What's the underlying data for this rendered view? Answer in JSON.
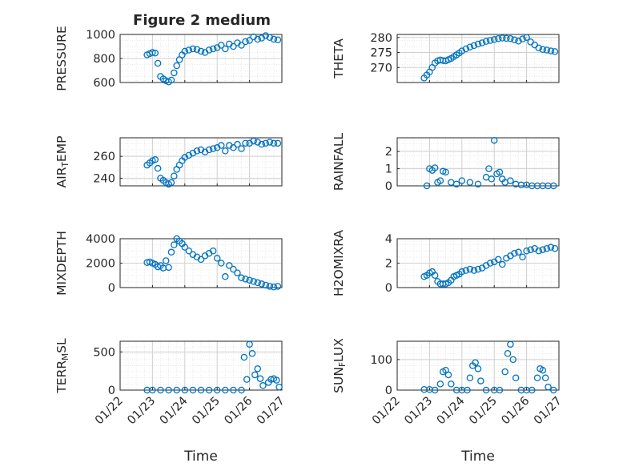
{
  "figure": {
    "title": "Figure 2 medium"
  },
  "chart_data": [
    {
      "type": "scatter",
      "ylabel": "PRESSURE",
      "ylim": [
        600,
        1000
      ],
      "yticks": [
        "600",
        "800",
        "1000"
      ],
      "xlim": [
        "01/22",
        "01/27"
      ],
      "xticks": [],
      "xlabel": "",
      "grid": true,
      "x": [
        "01/22 20:00",
        "01/22 22:00",
        "01/23 00:00",
        "01/23 02:00",
        "01/23 04:00",
        "01/23 06:00",
        "01/23 08:00",
        "01/23 10:00",
        "01/23 12:00",
        "01/23 14:00",
        "01/23 16:00",
        "01/23 18:00",
        "01/23 20:00",
        "01/23 22:00",
        "01/24 00:00",
        "01/24 03:00",
        "01/24 06:00",
        "01/24 09:00",
        "01/24 12:00",
        "01/24 15:00",
        "01/24 18:00",
        "01/24 21:00",
        "01/25 00:00",
        "01/25 03:00",
        "01/25 06:00",
        "01/25 09:00",
        "01/25 12:00",
        "01/25 15:00",
        "01/25 18:00",
        "01/25 21:00",
        "01/26 00:00",
        "01/26 03:00",
        "01/26 06:00",
        "01/26 09:00",
        "01/26 12:00",
        "01/26 15:00",
        "01/26 18:00",
        "01/26 21:00"
      ],
      "y": [
        830,
        840,
        850,
        845,
        760,
        650,
        630,
        615,
        605,
        620,
        680,
        740,
        790,
        830,
        860,
        870,
        880,
        875,
        860,
        850,
        870,
        880,
        890,
        910,
        880,
        920,
        900,
        930,
        910,
        940,
        950,
        980,
        960,
        970,
        990,
        975,
        960,
        955
      ]
    },
    {
      "type": "scatter",
      "ylabel": "THETA",
      "ylim": [
        265,
        281
      ],
      "yticks": [
        "270",
        "275",
        "280"
      ],
      "xlim": [
        "01/22",
        "01/27"
      ],
      "xticks": [],
      "xlabel": "",
      "grid": true,
      "x": [
        "01/22 20:00",
        "01/22 22:00",
        "01/23 00:00",
        "01/23 02:00",
        "01/23 04:00",
        "01/23 06:00",
        "01/23 08:00",
        "01/23 10:00",
        "01/23 12:00",
        "01/23 14:00",
        "01/23 16:00",
        "01/23 18:00",
        "01/23 20:00",
        "01/23 22:00",
        "01/24 00:00",
        "01/24 03:00",
        "01/24 06:00",
        "01/24 09:00",
        "01/24 12:00",
        "01/24 15:00",
        "01/24 18:00",
        "01/24 21:00",
        "01/25 00:00",
        "01/25 03:00",
        "01/25 06:00",
        "01/25 09:00",
        "01/25 12:00",
        "01/25 15:00",
        "01/25 18:00",
        "01/25 21:00",
        "01/26 00:00",
        "01/26 03:00",
        "01/26 06:00",
        "01/26 09:00",
        "01/26 12:00",
        "01/26 15:00",
        "01/26 18:00",
        "01/26 21:00"
      ],
      "y": [
        266.5,
        267.5,
        268.5,
        270,
        271.5,
        272.2,
        272.5,
        272.3,
        272.2,
        272.6,
        273,
        273.6,
        274.2,
        274.8,
        275.5,
        276.2,
        276.8,
        277.3,
        277.8,
        278.2,
        278.7,
        279,
        279.3,
        279.6,
        279.8,
        279.7,
        279.6,
        279.2,
        278.8,
        279.5,
        280,
        278.5,
        277.5,
        276.5,
        276,
        275.8,
        275.5,
        275.3
      ]
    },
    {
      "type": "scatter",
      "ylabel": "AIR_TEMP",
      "ylim": [
        233,
        277
      ],
      "yticks": [
        "240",
        "260"
      ],
      "xlim": [
        "01/22",
        "01/27"
      ],
      "xticks": [],
      "xlabel": "",
      "grid": true,
      "x": [
        "01/22 20:00",
        "01/22 22:00",
        "01/23 00:00",
        "01/23 02:00",
        "01/23 04:00",
        "01/23 06:00",
        "01/23 08:00",
        "01/23 10:00",
        "01/23 12:00",
        "01/23 14:00",
        "01/23 16:00",
        "01/23 18:00",
        "01/23 20:00",
        "01/23 22:00",
        "01/24 00:00",
        "01/24 03:00",
        "01/24 06:00",
        "01/24 09:00",
        "01/24 12:00",
        "01/24 15:00",
        "01/24 18:00",
        "01/24 21:00",
        "01/25 00:00",
        "01/25 03:00",
        "01/25 06:00",
        "01/25 09:00",
        "01/25 12:00",
        "01/25 15:00",
        "01/25 18:00",
        "01/25 21:00",
        "01/26 00:00",
        "01/26 03:00",
        "01/26 06:00",
        "01/26 09:00",
        "01/26 12:00",
        "01/26 15:00",
        "01/26 18:00",
        "01/26 21:00"
      ],
      "y": [
        252,
        254,
        256,
        257,
        249,
        240,
        238,
        236,
        234.5,
        236,
        242,
        248,
        252,
        256,
        259,
        261,
        263,
        265,
        266,
        264,
        266,
        267,
        268,
        270,
        265,
        270,
        268,
        271,
        267,
        272,
        272,
        274,
        273,
        271,
        272,
        273,
        272,
        272
      ]
    },
    {
      "type": "scatter",
      "ylabel": "RAINFALL",
      "ylim": [
        0,
        2.8
      ],
      "yticks": [
        "0",
        "1",
        "2"
      ],
      "xlim": [
        "01/22",
        "01/27"
      ],
      "xticks": [],
      "xlabel": "",
      "grid": true,
      "x": [
        "01/22 22:00",
        "01/23 00:00",
        "01/23 02:00",
        "01/23 04:00",
        "01/23 06:00",
        "01/23 08:00",
        "01/23 10:00",
        "01/23 12:00",
        "01/23 16:00",
        "01/23 20:00",
        "01/24 00:00",
        "01/24 06:00",
        "01/24 12:00",
        "01/24 18:00",
        "01/24 20:00",
        "01/24 22:00",
        "01/25 00:00",
        "01/25 02:00",
        "01/25 04:00",
        "01/25 06:00",
        "01/25 08:00",
        "01/25 12:00",
        "01/25 16:00",
        "01/25 20:00",
        "01/26 00:00",
        "01/26 04:00",
        "01/26 08:00",
        "01/26 12:00",
        "01/26 16:00",
        "01/26 20:00"
      ],
      "y": [
        0,
        1.0,
        0.9,
        1.05,
        0.2,
        0.3,
        0.85,
        0.8,
        0.2,
        0.1,
        0.3,
        0.2,
        0.1,
        0.5,
        1.0,
        0.4,
        2.65,
        0.7,
        0.8,
        0.4,
        0.2,
        0.3,
        0.1,
        0.05,
        0.05,
        0,
        0,
        0,
        0,
        0
      ]
    },
    {
      "type": "scatter",
      "ylabel": "MIXDEPTH",
      "ylim": [
        0,
        4000
      ],
      "yticks": [
        "0",
        "2000",
        "4000"
      ],
      "xlim": [
        "01/22",
        "01/27"
      ],
      "xticks": [],
      "xlabel": "",
      "grid": true,
      "x": [
        "01/22 20:00",
        "01/22 22:00",
        "01/23 00:00",
        "01/23 02:00",
        "01/23 04:00",
        "01/23 06:00",
        "01/23 08:00",
        "01/23 10:00",
        "01/23 12:00",
        "01/23 14:00",
        "01/23 16:00",
        "01/23 18:00",
        "01/23 20:00",
        "01/23 22:00",
        "01/24 00:00",
        "01/24 03:00",
        "01/24 06:00",
        "01/24 09:00",
        "01/24 12:00",
        "01/24 15:00",
        "01/24 18:00",
        "01/24 21:00",
        "01/25 00:00",
        "01/25 03:00",
        "01/25 06:00",
        "01/25 09:00",
        "01/25 12:00",
        "01/25 15:00",
        "01/25 18:00",
        "01/25 21:00",
        "01/26 00:00",
        "01/26 03:00",
        "01/26 06:00",
        "01/26 09:00",
        "01/26 12:00",
        "01/26 15:00",
        "01/26 18:00",
        "01/26 21:00"
      ],
      "y": [
        2050,
        2100,
        2000,
        1900,
        1700,
        1800,
        1600,
        2200,
        1650,
        2900,
        3500,
        4000,
        3800,
        3600,
        3300,
        3000,
        2700,
        2500,
        2300,
        2600,
        2800,
        3000,
        2400,
        2000,
        900,
        1800,
        1500,
        1200,
        800,
        700,
        600,
        500,
        400,
        300,
        200,
        100,
        50,
        100
      ]
    },
    {
      "type": "scatter",
      "ylabel": "H2OMIXRA",
      "ylim": [
        0,
        4
      ],
      "yticks": [
        "0",
        "2",
        "4"
      ],
      "xlim": [
        "01/22",
        "01/27"
      ],
      "xticks": [],
      "xlabel": "",
      "grid": true,
      "x": [
        "01/22 20:00",
        "01/22 22:00",
        "01/23 00:00",
        "01/23 02:00",
        "01/23 04:00",
        "01/23 06:00",
        "01/23 08:00",
        "01/23 10:00",
        "01/23 12:00",
        "01/23 14:00",
        "01/23 16:00",
        "01/23 18:00",
        "01/23 20:00",
        "01/23 22:00",
        "01/24 00:00",
        "01/24 03:00",
        "01/24 06:00",
        "01/24 09:00",
        "01/24 12:00",
        "01/24 15:00",
        "01/24 18:00",
        "01/24 21:00",
        "01/25 00:00",
        "01/25 03:00",
        "01/25 06:00",
        "01/25 09:00",
        "01/25 12:00",
        "01/25 15:00",
        "01/25 18:00",
        "01/25 21:00",
        "01/26 00:00",
        "01/26 03:00",
        "01/26 06:00",
        "01/26 09:00",
        "01/26 12:00",
        "01/26 15:00",
        "01/26 18:00",
        "01/26 21:00"
      ],
      "y": [
        0.9,
        1.0,
        1.2,
        1.3,
        1.0,
        0.5,
        0.3,
        0.3,
        0.3,
        0.4,
        0.6,
        0.9,
        1.0,
        1.1,
        1.3,
        1.4,
        1.5,
        1.4,
        1.5,
        1.6,
        1.8,
        2.0,
        2.1,
        2.3,
        1.9,
        2.4,
        2.6,
        2.8,
        2.9,
        2.5,
        3.0,
        3.1,
        3.2,
        3.0,
        3.1,
        3.2,
        3.3,
        3.2
      ]
    },
    {
      "type": "scatter",
      "ylabel": "TERR_MSL",
      "ylim": [
        0,
        640
      ],
      "yticks": [
        "0",
        "500"
      ],
      "xlim": [
        "01/22",
        "01/27"
      ],
      "xticks": [
        "01/22",
        "01/23",
        "01/24",
        "01/25",
        "01/26",
        "01/27"
      ],
      "xlabel": "Time",
      "grid": true,
      "x": [
        "01/22 20:00",
        "01/23 00:00",
        "01/23 06:00",
        "01/23 12:00",
        "01/23 18:00",
        "01/24 00:00",
        "01/24 06:00",
        "01/24 12:00",
        "01/24 18:00",
        "01/25 00:00",
        "01/25 06:00",
        "01/25 12:00",
        "01/25 18:00",
        "01/25 20:00",
        "01/25 22:00",
        "01/26 00:00",
        "01/26 02:00",
        "01/26 04:00",
        "01/26 06:00",
        "01/26 08:00",
        "01/26 10:00",
        "01/26 14:00",
        "01/26 16:00",
        "01/26 18:00",
        "01/26 20:00",
        "01/26 22:00"
      ],
      "y": [
        0,
        0,
        0,
        0,
        0,
        0,
        0,
        0,
        0,
        0,
        0,
        0,
        0,
        430,
        140,
        600,
        480,
        200,
        280,
        150,
        60,
        100,
        140,
        150,
        130,
        40
      ]
    },
    {
      "type": "scatter",
      "ylabel": "SUN_FLUX",
      "ylim": [
        0,
        160
      ],
      "yticks": [
        "0",
        "100"
      ],
      "xlim": [
        "01/22",
        "01/27"
      ],
      "xticks": [
        "01/22",
        "01/23",
        "01/24",
        "01/25",
        "01/26",
        "01/27"
      ],
      "xlabel": "Time",
      "grid": true,
      "x": [
        "01/22 20:00",
        "01/23 00:00",
        "01/23 04:00",
        "01/23 08:00",
        "01/23 10:00",
        "01/23 12:00",
        "01/23 14:00",
        "01/23 16:00",
        "01/23 20:00",
        "01/24 00:00",
        "01/24 04:00",
        "01/24 06:00",
        "01/24 08:00",
        "01/24 10:00",
        "01/24 12:00",
        "01/24 14:00",
        "01/24 18:00",
        "01/25 00:00",
        "01/25 04:00",
        "01/25 08:00",
        "01/25 10:00",
        "01/25 12:00",
        "01/25 14:00",
        "01/25 16:00",
        "01/25 20:00",
        "01/26 00:00",
        "01/26 04:00",
        "01/26 08:00",
        "01/26 10:00",
        "01/26 12:00",
        "01/26 14:00",
        "01/26 16:00",
        "01/26 20:00"
      ],
      "y": [
        2,
        2,
        0,
        20,
        60,
        65,
        50,
        20,
        0,
        0,
        0,
        40,
        80,
        90,
        70,
        30,
        0,
        0,
        0,
        60,
        120,
        150,
        100,
        40,
        0,
        0,
        0,
        40,
        70,
        65,
        40,
        10,
        0
      ]
    }
  ],
  "colors": {
    "marker": "#0072BD",
    "axes": "#262626",
    "grid": "#dddddd"
  }
}
